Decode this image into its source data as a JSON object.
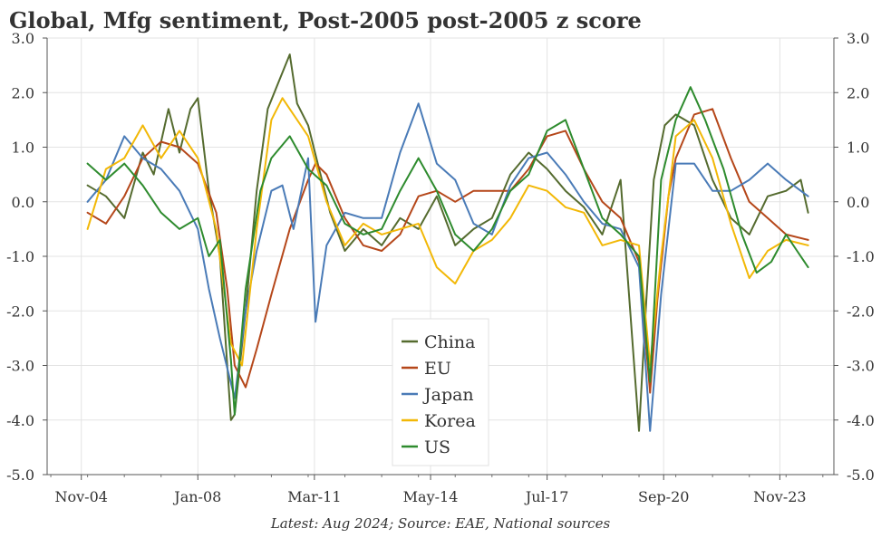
{
  "chart_data": {
    "type": "line",
    "title": "Global, Mfg sentiment, Post-2005 post-2005 z score",
    "note": "Latest: Aug 2024; Source: EAE, National sources",
    "ylim": [
      -5.0,
      3.0
    ],
    "y_ticks": [
      "3.0",
      "2.0",
      "1.0",
      "0.0",
      "-1.0",
      "-2.0",
      "-3.0",
      "-4.0",
      "-5.0"
    ],
    "x_ticks": [
      "Nov-04",
      "Jan-08",
      "Mar-11",
      "May-14",
      "Jul-17",
      "Sep-20",
      "Nov-23"
    ],
    "x_tick_values": [
      2004.83,
      2008.0,
      2011.17,
      2014.33,
      2017.5,
      2020.67,
      2023.83
    ],
    "xlim": [
      2003.9,
      2025.3
    ],
    "grid": true,
    "legend_position": "bottom-center",
    "series": [
      {
        "name": "China",
        "color": "#556B2F",
        "x": [
          2005.0,
          2005.5,
          2006.0,
          2006.5,
          2006.8,
          2007.2,
          2007.5,
          2007.8,
          2008.0,
          2008.3,
          2008.6,
          2008.9,
          2009.0,
          2009.3,
          2009.6,
          2009.9,
          2010.2,
          2010.5,
          2010.7,
          2011.0,
          2011.3,
          2011.6,
          2012.0,
          2012.5,
          2013.0,
          2013.5,
          2014.0,
          2014.5,
          2015.0,
          2015.5,
          2016.0,
          2016.5,
          2017.0,
          2017.5,
          2018.0,
          2018.5,
          2019.0,
          2019.5,
          2020.0,
          2020.2,
          2020.4,
          2020.7,
          2021.0,
          2021.5,
          2022.0,
          2022.5,
          2023.0,
          2023.5,
          2024.0,
          2024.4,
          2024.6
        ],
        "y": [
          0.3,
          0.1,
          -0.3,
          0.9,
          0.5,
          1.7,
          0.9,
          1.7,
          1.9,
          0.2,
          -1.0,
          -4.0,
          -3.9,
          -2.0,
          0.2,
          1.7,
          2.2,
          2.7,
          1.8,
          1.4,
          0.6,
          -0.2,
          -0.9,
          -0.5,
          -0.8,
          -0.3,
          -0.5,
          0.1,
          -0.8,
          -0.5,
          -0.3,
          0.5,
          0.9,
          0.6,
          0.2,
          -0.1,
          -0.6,
          0.4,
          -4.2,
          -1.8,
          0.4,
          1.4,
          1.6,
          1.4,
          0.4,
          -0.3,
          -0.6,
          0.1,
          0.2,
          0.4,
          -0.2
        ]
      },
      {
        "name": "EU",
        "color": "#B5471A",
        "x": [
          2005.0,
          2005.5,
          2006.0,
          2006.5,
          2007.0,
          2007.5,
          2008.0,
          2008.5,
          2008.8,
          2009.0,
          2009.3,
          2009.6,
          2010.0,
          2010.5,
          2011.0,
          2011.2,
          2011.5,
          2012.0,
          2012.5,
          2013.0,
          2013.5,
          2014.0,
          2014.5,
          2015.0,
          2015.5,
          2016.0,
          2016.5,
          2017.0,
          2017.5,
          2018.0,
          2018.5,
          2019.0,
          2019.5,
          2020.0,
          2020.3,
          2020.5,
          2020.8,
          2021.0,
          2021.5,
          2022.0,
          2022.5,
          2023.0,
          2023.5,
          2024.0,
          2024.6
        ],
        "y": [
          -0.2,
          -0.4,
          0.1,
          0.8,
          1.1,
          1.0,
          0.7,
          -0.2,
          -1.6,
          -3.0,
          -3.4,
          -2.7,
          -1.7,
          -0.5,
          0.4,
          0.7,
          0.5,
          -0.3,
          -0.8,
          -0.9,
          -0.6,
          0.1,
          0.2,
          0.0,
          0.2,
          0.2,
          0.2,
          0.6,
          1.2,
          1.3,
          0.6,
          0.0,
          -0.3,
          -1.1,
          -3.5,
          -1.8,
          0.1,
          0.8,
          1.6,
          1.7,
          0.8,
          0.0,
          -0.3,
          -0.6,
          -0.7
        ]
      },
      {
        "name": "Japan",
        "color": "#4A7BB7",
        "x": [
          2005.0,
          2005.5,
          2006.0,
          2006.5,
          2007.0,
          2007.5,
          2008.0,
          2008.3,
          2008.6,
          2009.0,
          2009.3,
          2009.6,
          2010.0,
          2010.3,
          2010.6,
          2011.0,
          2011.2,
          2011.5,
          2012.0,
          2012.5,
          2013.0,
          2013.5,
          2014.0,
          2014.5,
          2015.0,
          2015.5,
          2016.0,
          2016.5,
          2017.0,
          2017.5,
          2018.0,
          2018.5,
          2019.0,
          2019.5,
          2020.0,
          2020.3,
          2020.6,
          2021.0,
          2021.5,
          2022.0,
          2022.5,
          2023.0,
          2023.5,
          2024.0,
          2024.6
        ],
        "y": [
          0.0,
          0.4,
          1.2,
          0.8,
          0.6,
          0.2,
          -0.5,
          -1.6,
          -2.5,
          -3.6,
          -2.0,
          -0.9,
          0.2,
          0.3,
          -0.5,
          0.8,
          -2.2,
          -0.8,
          -0.2,
          -0.3,
          -0.3,
          0.9,
          1.8,
          0.7,
          0.4,
          -0.4,
          -0.6,
          0.3,
          0.8,
          0.9,
          0.5,
          0.0,
          -0.4,
          -0.5,
          -1.2,
          -4.2,
          -1.7,
          0.7,
          0.7,
          0.2,
          0.2,
          0.4,
          0.7,
          0.4,
          0.1
        ]
      },
      {
        "name": "Korea",
        "color": "#F2B807",
        "x": [
          2005.0,
          2005.5,
          2006.0,
          2006.5,
          2007.0,
          2007.5,
          2008.0,
          2008.5,
          2008.9,
          2009.2,
          2009.6,
          2010.0,
          2010.3,
          2010.6,
          2011.0,
          2011.5,
          2012.0,
          2012.5,
          2013.0,
          2013.5,
          2014.0,
          2014.5,
          2015.0,
          2015.5,
          2016.0,
          2016.5,
          2017.0,
          2017.5,
          2018.0,
          2018.5,
          2019.0,
          2019.5,
          2020.0,
          2020.3,
          2020.6,
          2021.0,
          2021.5,
          2022.0,
          2022.5,
          2023.0,
          2023.5,
          2024.0,
          2024.6
        ],
        "y": [
          -0.5,
          0.6,
          0.8,
          1.4,
          0.8,
          1.3,
          0.8,
          -0.5,
          -2.6,
          -3.0,
          -0.5,
          1.5,
          1.9,
          1.6,
          1.2,
          0.0,
          -0.8,
          -0.4,
          -0.6,
          -0.5,
          -0.4,
          -1.2,
          -1.5,
          -0.9,
          -0.7,
          -0.3,
          0.3,
          0.2,
          -0.1,
          -0.2,
          -0.8,
          -0.7,
          -0.8,
          -3.0,
          -1.0,
          1.2,
          1.5,
          0.8,
          -0.4,
          -1.4,
          -0.9,
          -0.7,
          -0.8
        ]
      },
      {
        "name": "US",
        "color": "#2E8B2E",
        "x": [
          2005.0,
          2005.5,
          2006.0,
          2006.5,
          2007.0,
          2007.5,
          2008.0,
          2008.3,
          2008.6,
          2008.9,
          2009.0,
          2009.3,
          2009.7,
          2010.0,
          2010.5,
          2011.0,
          2011.5,
          2012.0,
          2012.5,
          2013.0,
          2013.5,
          2014.0,
          2014.5,
          2015.0,
          2015.5,
          2016.0,
          2016.5,
          2017.0,
          2017.5,
          2018.0,
          2018.5,
          2019.0,
          2019.5,
          2020.0,
          2020.3,
          2020.6,
          2021.0,
          2021.4,
          2021.8,
          2022.3,
          2022.8,
          2023.2,
          2023.6,
          2024.0,
          2024.3,
          2024.6
        ],
        "y": [
          0.7,
          0.4,
          0.7,
          0.3,
          -0.2,
          -0.5,
          -0.3,
          -1.0,
          -0.7,
          -2.9,
          -3.9,
          -1.6,
          0.2,
          0.8,
          1.2,
          0.6,
          0.3,
          -0.4,
          -0.6,
          -0.5,
          0.2,
          0.8,
          0.2,
          -0.6,
          -0.9,
          -0.5,
          0.2,
          0.5,
          1.3,
          1.5,
          0.6,
          -0.3,
          -0.6,
          -1.0,
          -3.3,
          0.4,
          1.5,
          2.1,
          1.5,
          0.6,
          -0.6,
          -1.3,
          -1.1,
          -0.6,
          -0.9,
          -1.2
        ]
      }
    ]
  }
}
